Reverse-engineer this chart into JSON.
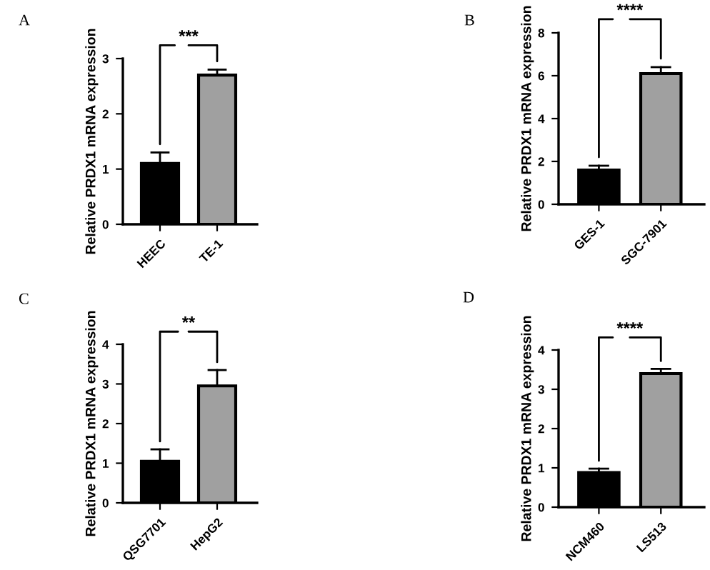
{
  "chart_data": [
    {
      "type": "bar",
      "title": "A",
      "ylabel": "Relative PRDX1 mRNA expression",
      "categories": [
        "HEEC",
        "TE-1"
      ],
      "values": [
        1.1,
        2.7
      ],
      "errors": [
        [
          1.1,
          1.3
        ],
        [
          2.7,
          2.8
        ]
      ],
      "colors": [
        "#000000",
        "#a0a0a0"
      ],
      "ylim": [
        0,
        3
      ],
      "yticks": [
        0,
        1,
        2,
        3
      ],
      "annotations": [
        "***"
      ],
      "grid": false,
      "legend": false
    },
    {
      "type": "bar",
      "title": "B",
      "ylabel": "Relative PRDX1 mRNA expression",
      "categories": [
        "GES-1",
        "SGC-7901"
      ],
      "values": [
        1.6,
        6.1
      ],
      "errors": [
        [
          1.6,
          1.8
        ],
        [
          6.1,
          6.4
        ]
      ],
      "colors": [
        "#000000",
        "#a0a0a0"
      ],
      "ylim": [
        0,
        8
      ],
      "yticks": [
        0,
        2,
        4,
        6,
        8
      ],
      "annotations": [
        "****"
      ],
      "grid": false,
      "legend": false
    },
    {
      "type": "bar",
      "title": "C",
      "ylabel": "Relative PRDX1 mRNA expression",
      "categories": [
        "QSG7701",
        "HepG2"
      ],
      "values": [
        1.05,
        2.95
      ],
      "errors": [
        [
          1.05,
          1.35
        ],
        [
          2.95,
          3.35
        ]
      ],
      "colors": [
        "#000000",
        "#a0a0a0"
      ],
      "ylim": [
        0,
        4
      ],
      "yticks": [
        0,
        1,
        2,
        3,
        4
      ],
      "annotations": [
        "**"
      ],
      "grid": false,
      "legend": false
    },
    {
      "type": "bar",
      "title": "D",
      "ylabel": "Relative PRDX1 mRNA expression",
      "categories": [
        "NCM460",
        "LS513"
      ],
      "values": [
        0.88,
        3.4
      ],
      "errors": [
        [
          0.88,
          0.98
        ],
        [
          3.4,
          3.52
        ]
      ],
      "colors": [
        "#000000",
        "#a0a0a0"
      ],
      "ylim": [
        0,
        4
      ],
      "yticks": [
        0,
        1,
        2,
        3,
        4
      ],
      "annotations": [
        "****"
      ],
      "grid": false,
      "legend": false
    }
  ]
}
